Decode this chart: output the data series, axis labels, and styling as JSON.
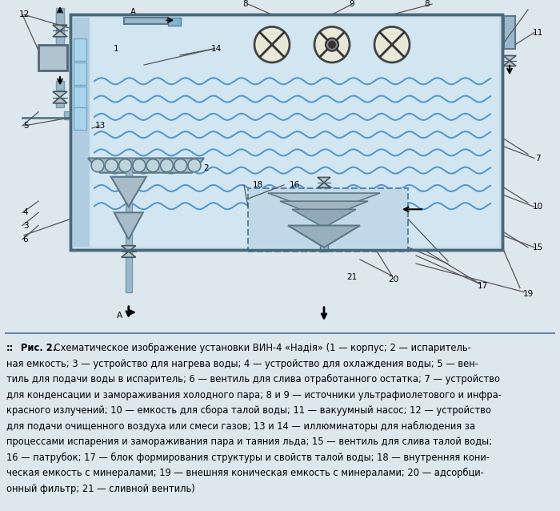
{
  "fig_bg": "#dde8ee",
  "diag_bg": "#ccdbe6",
  "tank_bg": "#c8dce8",
  "tank_inner_bg": "#d2e6f2",
  "wave_color": "#5599cc",
  "border_color": "#5a7a8a",
  "pipe_color": "#9ab8cc",
  "valve_color": "#b8c8d4",
  "lamp_bg": "#e8e8d8",
  "dashed_box_bg": "#c0d8e8",
  "cone_color": "#a8bfcc",
  "caption_lines": [
    ":: Рис. 2. Схематическое изображение установки ВИН-4 «Надія» (1 — корпус; 2 — испаритель-",
    "ная емкость; 3 — устройство для нагрева воды; 4 — устройство для охлаждения воды; 5 — вен-",
    "тиль для подачи воды в испаритель; 6 — вентиль для слива отработанного остатка; 7 — устройство",
    "для конденсации и замораживания холодного пара; 8 и 9 — источники ультрафиолетового и инфра-",
    "красного излучений; 10 — емкость для сбора талой воды; 11 — вакуумный насос; 12 — устройство",
    "для подачи очищенного воздуха или смеси газов; 13 и 14 — иллюминаторы для наблюдения за",
    "процессами испарения и замораживания пара и таяния льда; 15 — вентиль для слива талой воды;",
    "16 — патрубок; 17 — блок формирования структуры и свойств талой воды; 18 — внутренняя кони-",
    "ческая емкость с минералами; 19 — внешняя коническая емкость с минералами; 20 — адсорбци-",
    "онный фильтр; 21 — сливной вентиль)"
  ]
}
